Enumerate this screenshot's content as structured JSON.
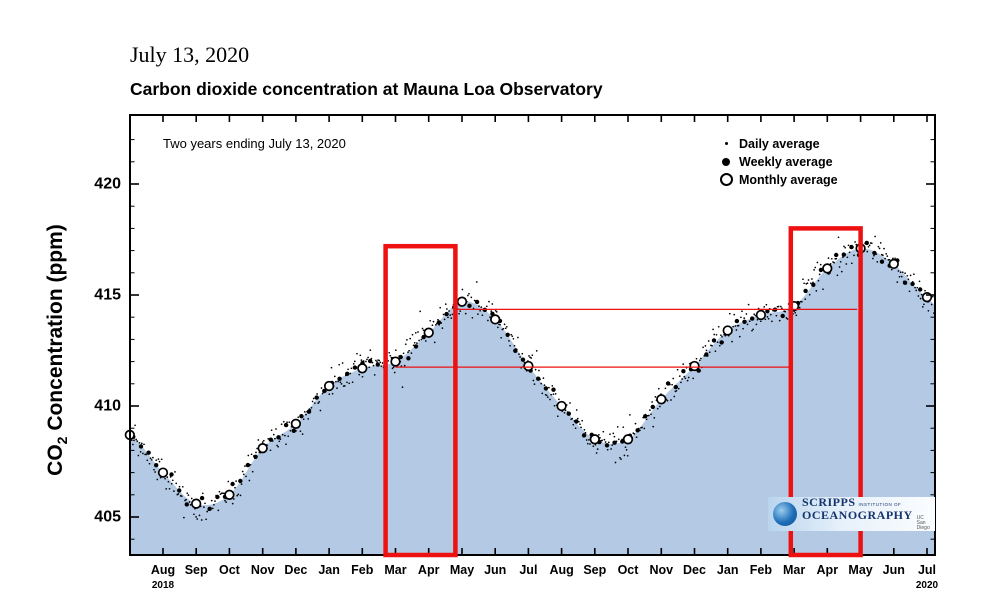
{
  "page": {
    "date_label": "July 13, 2020",
    "title": "Carbon dioxide concentration at Mauna Loa Observatory",
    "annotation": "Two years ending July 13, 2020",
    "y_label_pre": "CO",
    "y_label_sub": "2",
    "y_label_post": " Concentration (ppm)"
  },
  "legend": {
    "items": [
      {
        "label": "Daily average",
        "marker": "small-dot"
      },
      {
        "label": "Weekly average",
        "marker": "filled-dot"
      },
      {
        "label": "Monthly average",
        "marker": "open-circle"
      }
    ]
  },
  "logo": {
    "line1": "SCRIPPS",
    "line2": "INSTITUTION OF",
    "line3": "OCEANOGRAPHY",
    "line4": "UC San Diego"
  },
  "chart_data": {
    "type": "area",
    "title": "Carbon dioxide concentration at Mauna Loa Observatory",
    "xlabel": "",
    "ylabel": "CO2 Concentration (ppm)",
    "ylim": [
      403.3,
      423.1
    ],
    "y_ticks": [
      405,
      410,
      415,
      420
    ],
    "x_tick_labels": [
      "Aug",
      "Sep",
      "Oct",
      "Nov",
      "Dec",
      "Jan",
      "Feb",
      "Mar",
      "Apr",
      "May",
      "Jun",
      "Jul",
      "Aug",
      "Sep",
      "Oct",
      "Nov",
      "Dec",
      "Jan",
      "Feb",
      "Mar",
      "Apr",
      "May",
      "Jun",
      "Jul"
    ],
    "x_year_labels": [
      {
        "label": "2018",
        "tick": 0
      },
      {
        "label": "2020",
        "tick": 23
      }
    ],
    "scatter_series": [
      "Daily average",
      "Weekly average"
    ],
    "series": [
      {
        "name": "Monthly average",
        "months": [
          "Jul 2018",
          "Aug 2018",
          "Sep 2018",
          "Oct 2018",
          "Nov 2018",
          "Dec 2018",
          "Jan 2019",
          "Feb 2019",
          "Mar 2019",
          "Apr 2019",
          "May 2019",
          "Jun 2019",
          "Jul 2019",
          "Aug 2019",
          "Sep 2019",
          "Oct 2019",
          "Nov 2019",
          "Dec 2019",
          "Jan 2020",
          "Feb 2020",
          "Mar 2020",
          "Apr 2020",
          "May 2020",
          "Jun 2020",
          "Jul 2020"
        ],
        "values": [
          408.7,
          407.0,
          405.6,
          406.0,
          408.1,
          409.2,
          410.9,
          411.7,
          412.0,
          413.3,
          414.7,
          413.9,
          411.8,
          410.0,
          408.5,
          408.5,
          410.3,
          411.8,
          413.4,
          414.1,
          414.5,
          416.2,
          417.1,
          416.4,
          414.9
        ]
      }
    ],
    "area_color": "#b3c9e4",
    "marker_color": "#000000",
    "highlight_color": "#ee1111",
    "highlight_boxes": [
      {
        "label": "Mar-Apr 2019",
        "month_start": 6.7,
        "month_end": 8.8,
        "value_top": 417.2
      },
      {
        "label": "Mar-Apr 2020",
        "month_start": 18.9,
        "month_end": 21.0,
        "value_top": 418.0
      }
    ],
    "reference_lines": [
      {
        "value": 414.35,
        "month_start": 8.8,
        "month_end": 20.9
      },
      {
        "value": 411.75,
        "month_start": 7.0,
        "month_end": 18.9
      }
    ]
  }
}
